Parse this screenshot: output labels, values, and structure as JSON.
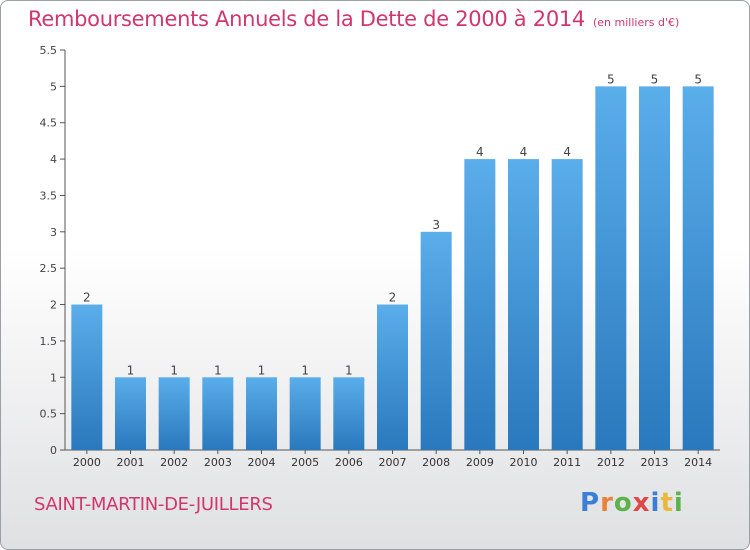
{
  "header": {
    "title": "Remboursements Annuels de la Dette de 2000 à 2014",
    "subtitle": "(en milliers d'€)"
  },
  "footer": {
    "city": "SAINT-MARTIN-DE-JUILLERS",
    "logo_text": "Proxiti"
  },
  "colors": {
    "bar": "#3a8fd8",
    "title": "#d1366d"
  },
  "chart_data": {
    "type": "bar",
    "title": "Remboursements Annuels de la Dette de 2000 à 2014",
    "subtitle": "(en milliers d'€)",
    "xlabel": "",
    "ylabel": "",
    "categories": [
      "2000",
      "2001",
      "2002",
      "2003",
      "2004",
      "2005",
      "2006",
      "2007",
      "2008",
      "2009",
      "2010",
      "2011",
      "2012",
      "2013",
      "2014"
    ],
    "values": [
      2,
      1,
      1,
      1,
      1,
      1,
      1,
      2,
      3,
      4,
      4,
      4,
      5,
      5,
      5
    ],
    "data_labels": [
      "2",
      "1",
      "1",
      "1",
      "1",
      "1",
      "1",
      "2",
      "3",
      "4",
      "4",
      "4",
      "5",
      "5",
      "5"
    ],
    "ylim": [
      0,
      5.5
    ],
    "yticks": [
      "0",
      "0.5",
      "1",
      "1.5",
      "2",
      "2.5",
      "3",
      "3.5",
      "4",
      "4.5",
      "5",
      "5.5"
    ],
    "grid": false,
    "legend": "none"
  }
}
